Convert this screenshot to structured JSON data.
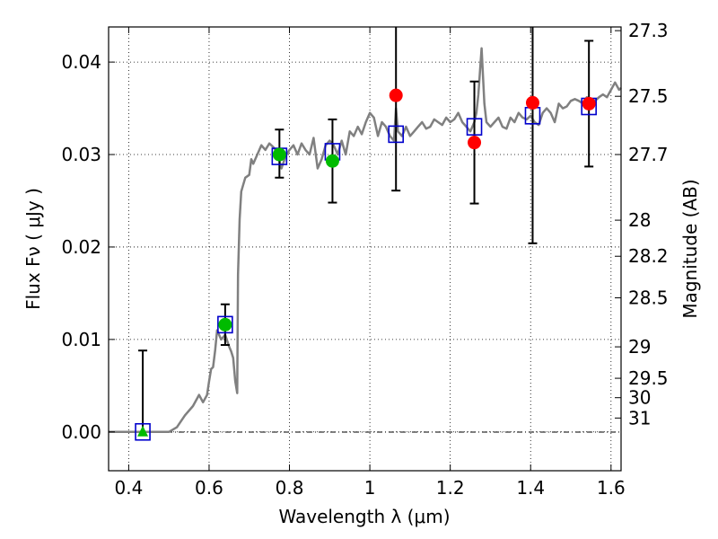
{
  "chart_data": {
    "type": "scatter",
    "xlabel": "Wavelength  λ (μm)",
    "ylabel": "Flux  Fν  ( μJy )",
    "y2label": "Magnitude (AB)",
    "xlim": [
      0.35,
      1.625
    ],
    "ylim": [
      -0.0042,
      0.0438
    ],
    "grid": true,
    "x_ticks": [
      {
        "value": 0.4,
        "label": "0.4"
      },
      {
        "value": 0.6,
        "label": "0.6"
      },
      {
        "value": 0.8,
        "label": "0.8"
      },
      {
        "value": 1.0,
        "label": "1"
      },
      {
        "value": 1.2,
        "label": "1.2"
      },
      {
        "value": 1.4,
        "label": "1.4"
      },
      {
        "value": 1.6,
        "label": "1.6"
      }
    ],
    "y_ticks": [
      {
        "value": 0.0,
        "label": "0.00"
      },
      {
        "value": 0.01,
        "label": "0.01"
      },
      {
        "value": 0.02,
        "label": "0.02"
      },
      {
        "value": 0.03,
        "label": "0.03"
      },
      {
        "value": 0.04,
        "label": "0.04"
      }
    ],
    "y2_ticks": [
      {
        "flux": 0.0434,
        "label": "27.3"
      },
      {
        "flux": 0.0363,
        "label": "27.5"
      },
      {
        "flux": 0.03,
        "label": "27.7"
      },
      {
        "flux": 0.0229,
        "label": "28"
      },
      {
        "flux": 0.019,
        "label": "28.2"
      },
      {
        "flux": 0.0145,
        "label": "28.5"
      },
      {
        "flux": 0.0092,
        "label": "29"
      },
      {
        "flux": 0.0058,
        "label": "29.5"
      },
      {
        "flux": 0.0037,
        "label": "30"
      },
      {
        "flux": 0.0015,
        "label": "31"
      }
    ],
    "model_color": "#808080",
    "model_spectrum": [
      [
        0.35,
        0.0
      ],
      [
        0.48,
        0.0
      ],
      [
        0.5,
        0.0
      ],
      [
        0.52,
        0.0005
      ],
      [
        0.54,
        0.0018
      ],
      [
        0.56,
        0.0028
      ],
      [
        0.575,
        0.004
      ],
      [
        0.585,
        0.0032
      ],
      [
        0.595,
        0.004
      ],
      [
        0.6,
        0.0055
      ],
      [
        0.605,
        0.0068
      ],
      [
        0.61,
        0.007
      ],
      [
        0.615,
        0.0088
      ],
      [
        0.62,
        0.011
      ],
      [
        0.63,
        0.01
      ],
      [
        0.64,
        0.0105
      ],
      [
        0.65,
        0.0092
      ],
      [
        0.655,
        0.0087
      ],
      [
        0.66,
        0.008
      ],
      [
        0.665,
        0.0055
      ],
      [
        0.67,
        0.0042
      ],
      [
        0.672,
        0.017
      ],
      [
        0.676,
        0.023
      ],
      [
        0.68,
        0.026
      ],
      [
        0.69,
        0.0275
      ],
      [
        0.7,
        0.0278
      ],
      [
        0.705,
        0.0295
      ],
      [
        0.71,
        0.029
      ],
      [
        0.72,
        0.03
      ],
      [
        0.73,
        0.031
      ],
      [
        0.74,
        0.0305
      ],
      [
        0.75,
        0.0312
      ],
      [
        0.76,
        0.0308
      ],
      [
        0.77,
        0.0302
      ],
      [
        0.78,
        0.0285
      ],
      [
        0.79,
        0.0298
      ],
      [
        0.8,
        0.0305
      ],
      [
        0.81,
        0.031
      ],
      [
        0.82,
        0.03
      ],
      [
        0.83,
        0.0312
      ],
      [
        0.84,
        0.0305
      ],
      [
        0.85,
        0.03
      ],
      [
        0.86,
        0.0318
      ],
      [
        0.87,
        0.0285
      ],
      [
        0.88,
        0.0295
      ],
      [
        0.89,
        0.031
      ],
      [
        0.9,
        0.0315
      ],
      [
        0.91,
        0.031
      ],
      [
        0.92,
        0.03
      ],
      [
        0.93,
        0.0315
      ],
      [
        0.94,
        0.03
      ],
      [
        0.95,
        0.0325
      ],
      [
        0.96,
        0.032
      ],
      [
        0.97,
        0.033
      ],
      [
        0.98,
        0.0322
      ],
      [
        0.99,
        0.0335
      ],
      [
        1.0,
        0.0345
      ],
      [
        1.01,
        0.034
      ],
      [
        1.02,
        0.032
      ],
      [
        1.03,
        0.0335
      ],
      [
        1.04,
        0.033
      ],
      [
        1.05,
        0.032
      ],
      [
        1.06,
        0.0315
      ],
      [
        1.065,
        0.035
      ],
      [
        1.07,
        0.0325
      ],
      [
        1.08,
        0.032
      ],
      [
        1.09,
        0.033
      ],
      [
        1.1,
        0.032
      ],
      [
        1.11,
        0.0325
      ],
      [
        1.12,
        0.033
      ],
      [
        1.13,
        0.0335
      ],
      [
        1.14,
        0.0328
      ],
      [
        1.15,
        0.033
      ],
      [
        1.16,
        0.0338
      ],
      [
        1.17,
        0.0335
      ],
      [
        1.18,
        0.0332
      ],
      [
        1.19,
        0.034
      ],
      [
        1.2,
        0.0335
      ],
      [
        1.21,
        0.0338
      ],
      [
        1.22,
        0.0345
      ],
      [
        1.23,
        0.0335
      ],
      [
        1.24,
        0.033
      ],
      [
        1.25,
        0.0325
      ],
      [
        1.26,
        0.0335
      ],
      [
        1.265,
        0.0345
      ],
      [
        1.27,
        0.0365
      ],
      [
        1.278,
        0.0415
      ],
      [
        1.285,
        0.0355
      ],
      [
        1.29,
        0.0335
      ],
      [
        1.3,
        0.033
      ],
      [
        1.31,
        0.0335
      ],
      [
        1.32,
        0.034
      ],
      [
        1.33,
        0.033
      ],
      [
        1.34,
        0.0328
      ],
      [
        1.35,
        0.034
      ],
      [
        1.36,
        0.0335
      ],
      [
        1.37,
        0.0345
      ],
      [
        1.38,
        0.034
      ],
      [
        1.39,
        0.0338
      ],
      [
        1.4,
        0.0342
      ],
      [
        1.41,
        0.0335
      ],
      [
        1.42,
        0.0332
      ],
      [
        1.43,
        0.0345
      ],
      [
        1.44,
        0.035
      ],
      [
        1.45,
        0.0345
      ],
      [
        1.46,
        0.0335
      ],
      [
        1.47,
        0.0355
      ],
      [
        1.48,
        0.035
      ],
      [
        1.49,
        0.0352
      ],
      [
        1.5,
        0.0358
      ],
      [
        1.51,
        0.036
      ],
      [
        1.52,
        0.0358
      ],
      [
        1.53,
        0.0355
      ],
      [
        1.54,
        0.0362
      ],
      [
        1.55,
        0.036
      ],
      [
        1.56,
        0.0358
      ],
      [
        1.57,
        0.0362
      ],
      [
        1.58,
        0.0365
      ],
      [
        1.59,
        0.0362
      ],
      [
        1.6,
        0.037
      ],
      [
        1.61,
        0.0378
      ],
      [
        1.62,
        0.037
      ],
      [
        1.625,
        0.0372
      ]
    ],
    "model_photometry": [
      {
        "x": 0.435,
        "y": 0.0
      },
      {
        "x": 0.64,
        "y": 0.0116
      },
      {
        "x": 0.775,
        "y": 0.0298
      },
      {
        "x": 0.907,
        "y": 0.0303
      },
      {
        "x": 1.065,
        "y": 0.0322
      },
      {
        "x": 1.26,
        "y": 0.033
      },
      {
        "x": 1.405,
        "y": 0.0342
      },
      {
        "x": 1.545,
        "y": 0.0352
      }
    ],
    "observed": [
      {
        "x": 0.435,
        "y": 0.0,
        "yerr_low": 0.0,
        "yerr_high": 0.0088,
        "marker": "triangle",
        "color": "#00bb00"
      },
      {
        "x": 0.64,
        "y": 0.0116,
        "yerr_low": 0.0022,
        "yerr_high": 0.0022,
        "marker": "circle",
        "color": "#00bb00"
      },
      {
        "x": 0.775,
        "y": 0.03,
        "yerr_low": 0.0025,
        "yerr_high": 0.0027,
        "marker": "circle",
        "color": "#00bb00"
      },
      {
        "x": 0.907,
        "y": 0.0293,
        "yerr_low": 0.0045,
        "yerr_high": 0.0045,
        "marker": "circle",
        "color": "#00bb00"
      },
      {
        "x": 1.065,
        "y": 0.0364,
        "yerr_low": 0.0103,
        "yerr_high": 0.0103,
        "marker": "circle",
        "color": "#ff0000"
      },
      {
        "x": 1.26,
        "y": 0.0313,
        "yerr_low": 0.0066,
        "yerr_high": 0.0066,
        "marker": "circle",
        "color": "#ff0000"
      },
      {
        "x": 1.405,
        "y": 0.0356,
        "yerr_low": 0.0152,
        "yerr_high": 0.0152,
        "marker": "circle",
        "color": "#ff0000"
      },
      {
        "x": 1.545,
        "y": 0.0355,
        "yerr_low": 0.0068,
        "yerr_high": 0.0068,
        "marker": "circle",
        "color": "#ff0000"
      }
    ],
    "square_color": "#0000cc"
  }
}
